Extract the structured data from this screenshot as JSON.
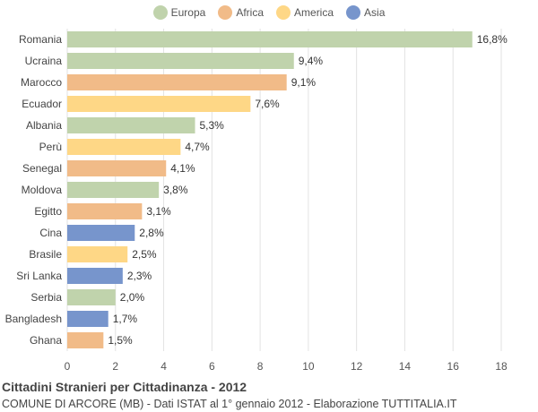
{
  "chart_data": {
    "type": "bar",
    "orientation": "horizontal",
    "categories": [
      "Romania",
      "Ucraina",
      "Marocco",
      "Ecuador",
      "Albania",
      "Perù",
      "Senegal",
      "Moldova",
      "Egitto",
      "Cina",
      "Brasile",
      "Sri Lanka",
      "Serbia",
      "Bangladesh",
      "Ghana"
    ],
    "values": [
      16.8,
      9.4,
      9.1,
      7.6,
      5.3,
      4.7,
      4.1,
      3.8,
      3.1,
      2.8,
      2.5,
      2.3,
      2.0,
      1.7,
      1.5
    ],
    "value_labels": [
      "16,8%",
      "9,4%",
      "9,1%",
      "7,6%",
      "5,3%",
      "4,7%",
      "4,1%",
      "3,8%",
      "3,1%",
      "2,8%",
      "2,5%",
      "2,3%",
      "2,0%",
      "1,7%",
      "1,5%"
    ],
    "groups": [
      "Europa",
      "Europa",
      "Africa",
      "America",
      "Europa",
      "America",
      "Africa",
      "Europa",
      "Africa",
      "Asia",
      "America",
      "Asia",
      "Europa",
      "Asia",
      "Africa"
    ],
    "legend": [
      {
        "name": "Europa",
        "color": "#c0d3ac"
      },
      {
        "name": "Africa",
        "color": "#f1bb88"
      },
      {
        "name": "America",
        "color": "#fed786"
      },
      {
        "name": "Asia",
        "color": "#7795cc"
      }
    ],
    "legend_position": "top-center",
    "xlim": [
      0,
      18
    ],
    "xticks": [
      0,
      2,
      4,
      6,
      8,
      10,
      12,
      14,
      16,
      18
    ],
    "grid": true,
    "title": "Cittadini Stranieri per Cittadinanza - 2012",
    "subtitle": "COMUNE DI ARCORE (MB) - Dati ISTAT al 1° gennaio 2012 - Elaborazione TUTTITALIA.IT"
  }
}
